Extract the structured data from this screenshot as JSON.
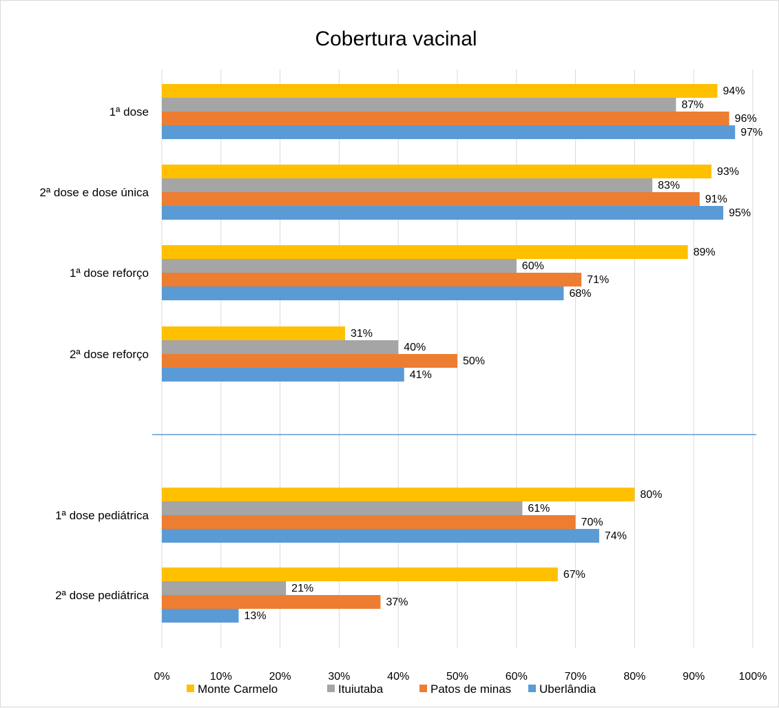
{
  "chart_data": {
    "type": "bar",
    "orientation": "horizontal",
    "title": "Cobertura vacinal",
    "xlabel": "",
    "ylabel": "",
    "xlim": [
      0,
      100
    ],
    "x_ticks": [
      "0%",
      "10%",
      "20%",
      "30%",
      "40%",
      "50%",
      "60%",
      "70%",
      "80%",
      "90%",
      "100%"
    ],
    "grid": true,
    "legend_position": "bottom",
    "categories": [
      "1ª dose",
      "2ª dose e dose única",
      "1ª dose reforço",
      "2ª dose reforço",
      "1ª dose pediátrica",
      "2ª dose pediátrica"
    ],
    "series": [
      {
        "name": "Monte Carmelo",
        "color": "#FFC000",
        "values": [
          94,
          93,
          89,
          31,
          80,
          67
        ]
      },
      {
        "name": "Ituiutaba",
        "color": "#A5A5A5",
        "values": [
          87,
          83,
          60,
          40,
          61,
          21
        ]
      },
      {
        "name": "Patos de minas",
        "color": "#ED7D31",
        "values": [
          96,
          91,
          71,
          50,
          70,
          37
        ]
      },
      {
        "name": "Uberlândia",
        "color": "#5B9BD5",
        "values": [
          97,
          95,
          68,
          41,
          74,
          13
        ]
      }
    ],
    "value_suffix": "%",
    "separator_color": "#5B9BD5"
  }
}
